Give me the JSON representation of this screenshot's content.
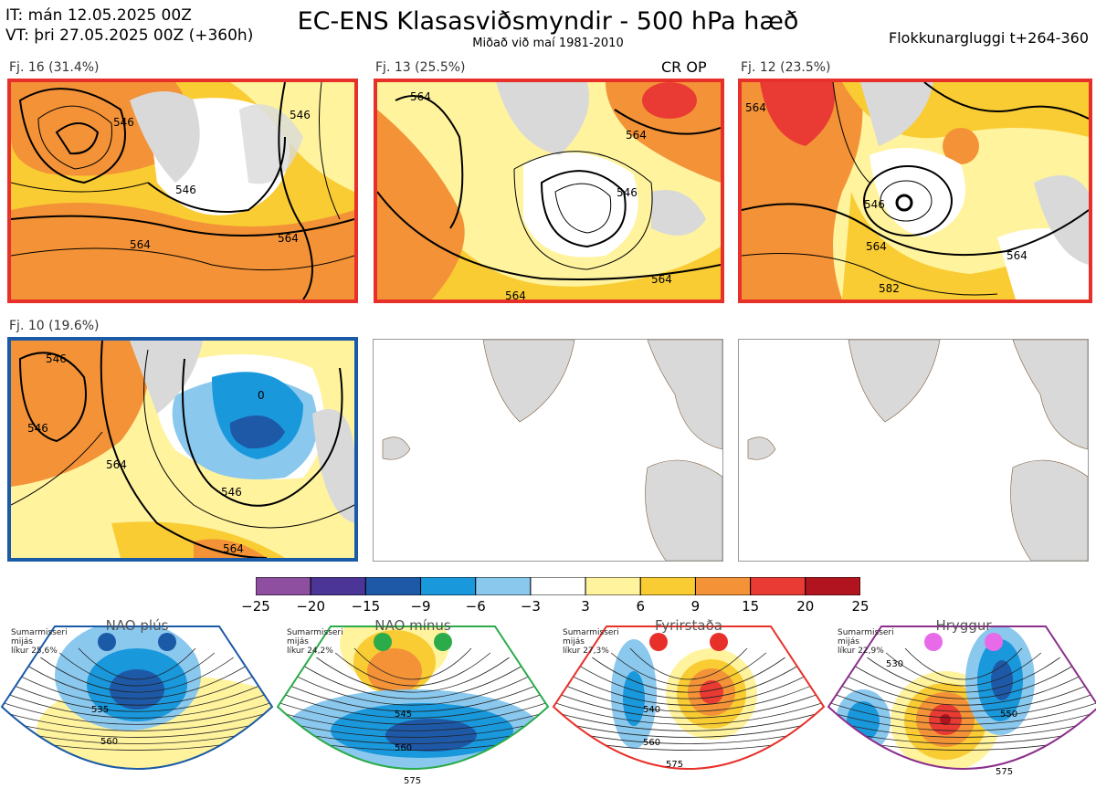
{
  "header": {
    "init": "IT: mán 12.05.2025 00Z",
    "valid": "VT: þri 27.05.2025 00Z  (+360h)",
    "title": "EC-ENS Klasasviðsmyndir - 500 hPa hæð",
    "subtitle": "Miðað við maí 1981-2010",
    "window": "Flokkunargluggi t+264-360"
  },
  "panels": [
    {
      "label": "Fj. 16 (31.4%)",
      "border": "#e8302a",
      "tag": "",
      "contours": [
        "546",
        "546",
        "564",
        "564",
        "546"
      ]
    },
    {
      "label": "Fj. 13 (25.5%)",
      "border": "#e8302a",
      "tag": "CR OP",
      "contours": [
        "564",
        "564",
        "546",
        "564",
        "564"
      ]
    },
    {
      "label": "Fj. 12 (23.5%)",
      "border": "#e8302a",
      "tag": "",
      "contours": [
        "564",
        "546",
        "564",
        "582",
        "564"
      ]
    },
    {
      "label": "Fj. 10 (19.6%)",
      "border": "#1a5aa6",
      "tag": "",
      "contours": [
        "546",
        "546",
        "564",
        "546",
        "564",
        "0"
      ]
    }
  ],
  "colorbar": {
    "ticks": [
      "−25",
      "−20",
      "−15",
      "−9",
      "−6",
      "−3",
      "3",
      "6",
      "9",
      "15",
      "20",
      "25"
    ],
    "colors": [
      "#8e4fa0",
      "#4b3597",
      "#1e59a8",
      "#1998dc",
      "#8ac8ee",
      "#ffffff",
      "#fff39e",
      "#f9cc33",
      "#f39237",
      "#e93b33",
      "#b2141f"
    ]
  },
  "regimes": [
    {
      "name": "NAO plús",
      "dot_color": "#1a5aa6",
      "fan_color": "#1a5aa6",
      "note": [
        "Sumarmisseri",
        "mijás",
        "líkur 25,6%"
      ],
      "contours": [
        "535",
        "560"
      ]
    },
    {
      "name": "NAO mínus",
      "dot_color": "#2bab4a",
      "fan_color": "#2bab4a",
      "note": [
        "Sumarmisseri",
        "mijás",
        "líkur 24,2%"
      ],
      "contours": [
        "545",
        "560",
        "575"
      ]
    },
    {
      "name": "Fyrirstaða",
      "dot_color": "#e8302a",
      "fan_color": "#e8302a",
      "note": [
        "Sumarmisseri",
        "mijás",
        "líkur 27,3%"
      ],
      "contours": [
        "540",
        "560",
        "575"
      ]
    },
    {
      "name": "Hryggur",
      "dot_color": "#e86ae8",
      "fan_color": "#8b2f8b",
      "note": [
        "Sumarmisseri",
        "mijás",
        "líkur 22,9%"
      ],
      "contours": [
        "530",
        "550",
        "575"
      ]
    }
  ],
  "chart_data": [
    {
      "type": "heatmap",
      "title": "Fj. 16 (31.4%)",
      "legend": "colorbar",
      "contour_labels": [
        546,
        546,
        564,
        564,
        546
      ]
    },
    {
      "type": "heatmap",
      "title": "Fj. 13 (25.5%)",
      "legend": "colorbar",
      "contour_labels": [
        564,
        564,
        546,
        564,
        564
      ]
    },
    {
      "type": "heatmap",
      "title": "Fj. 12 (23.5%)",
      "legend": "colorbar",
      "contour_labels": [
        564,
        546,
        564,
        582,
        564
      ]
    },
    {
      "type": "heatmap",
      "title": "Fj. 10 (19.6%)",
      "legend": "colorbar",
      "contour_labels": [
        546,
        546,
        564,
        546,
        564,
        0
      ]
    },
    {
      "type": "heatmap",
      "title": "NAO plús",
      "contour_labels": [
        535,
        560
      ]
    },
    {
      "type": "heatmap",
      "title": "NAO mínus",
      "contour_labels": [
        545,
        560,
        575
      ]
    },
    {
      "type": "heatmap",
      "title": "Fyrirstaða",
      "contour_labels": [
        540,
        560,
        575
      ]
    },
    {
      "type": "heatmap",
      "title": "Hryggur",
      "contour_labels": [
        530,
        550,
        575
      ]
    }
  ]
}
